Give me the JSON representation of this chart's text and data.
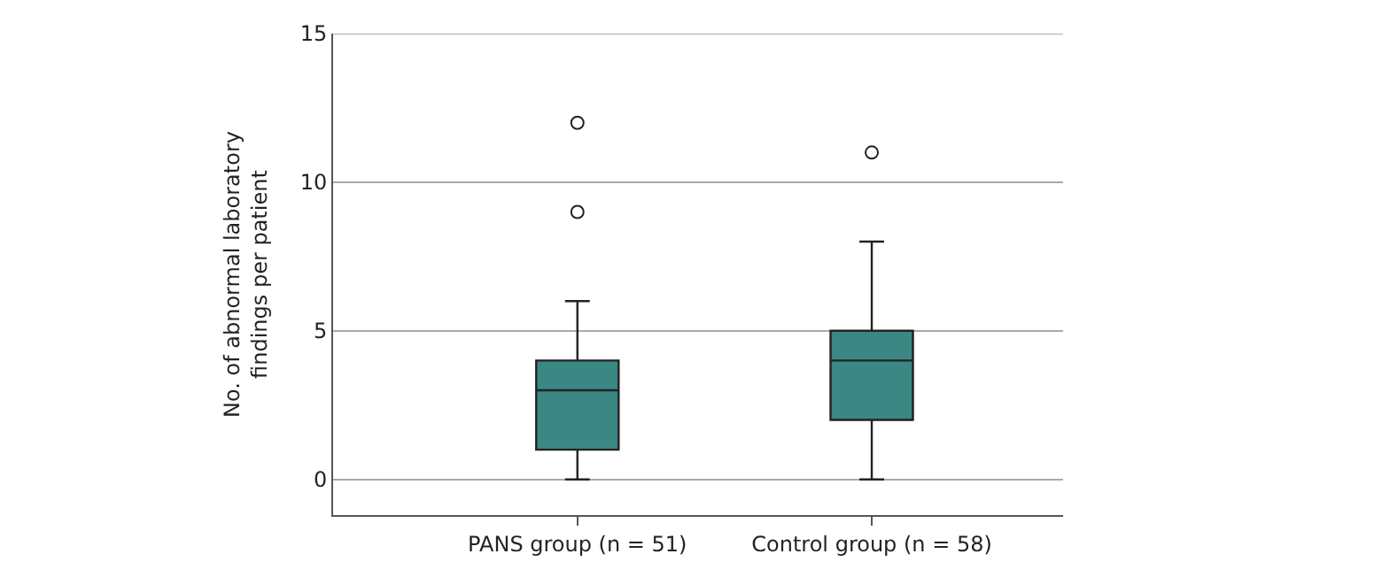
{
  "chart_data": {
    "type": "box",
    "ylabel": "No. of abnormal laboratory findings per patient",
    "categories": [
      "PANS group (n = 51)",
      "Control group (n = 58)"
    ],
    "boxes": [
      {
        "low": 0,
        "q1": 1,
        "median": 3,
        "q3": 4,
        "high": 6,
        "outliers": [
          9,
          12
        ]
      },
      {
        "low": 0,
        "q1": 2,
        "median": 4,
        "q3": 5,
        "high": 8,
        "outliers": [
          11
        ]
      }
    ],
    "color": "#3a8783",
    "ylim": [
      -1.2,
      15
    ],
    "yticks": [
      0,
      5,
      10,
      15
    ],
    "grid": "y"
  }
}
